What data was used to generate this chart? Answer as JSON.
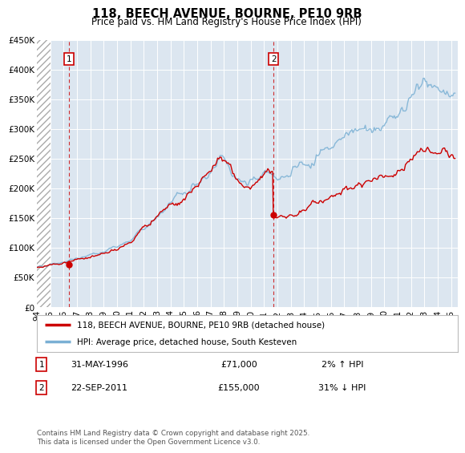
{
  "title": "118, BEECH AVENUE, BOURNE, PE10 9RB",
  "subtitle": "Price paid vs. HM Land Registry's House Price Index (HPI)",
  "background_color": "#ffffff",
  "plot_bg_color": "#dce6f0",
  "grid_color": "#ffffff",
  "ylabel_ticks": [
    "£0",
    "£50K",
    "£100K",
    "£150K",
    "£200K",
    "£250K",
    "£300K",
    "£350K",
    "£400K",
    "£450K"
  ],
  "ylabel_values": [
    0,
    50000,
    100000,
    150000,
    200000,
    250000,
    300000,
    350000,
    400000,
    450000
  ],
  "xlim_start": 1994.0,
  "xlim_end": 2025.5,
  "ylim_min": 0,
  "ylim_max": 450000,
  "sale1_year": 1996.42,
  "sale1_price": 71000,
  "sale2_year": 2011.72,
  "sale2_price": 155000,
  "sale1_hpi_pct": "2%",
  "sale1_hpi_dir": "↑",
  "sale1_date": "31-MAY-1996",
  "sale2_hpi_pct": "31%",
  "sale2_hpi_dir": "↓",
  "sale2_date": "22-SEP-2011",
  "red_line_color": "#cc0000",
  "blue_line_color": "#7ab0d4",
  "marker_color": "#cc0000",
  "dashed_line_color": "#cc0000",
  "legend_label_red": "118, BEECH AVENUE, BOURNE, PE10 9RB (detached house)",
  "legend_label_blue": "HPI: Average price, detached house, South Kesteven",
  "footer_text": "Contains HM Land Registry data © Crown copyright and database right 2025.\nThis data is licensed under the Open Government Licence v3.0.",
  "xtick_years": [
    1994,
    1995,
    1996,
    1997,
    1998,
    1999,
    2000,
    2001,
    2002,
    2003,
    2004,
    2005,
    2006,
    2007,
    2008,
    2009,
    2010,
    2011,
    2012,
    2013,
    2014,
    2015,
    2016,
    2017,
    2018,
    2019,
    2020,
    2021,
    2022,
    2023,
    2024,
    2025
  ],
  "hatch_end_year": 1995.0
}
